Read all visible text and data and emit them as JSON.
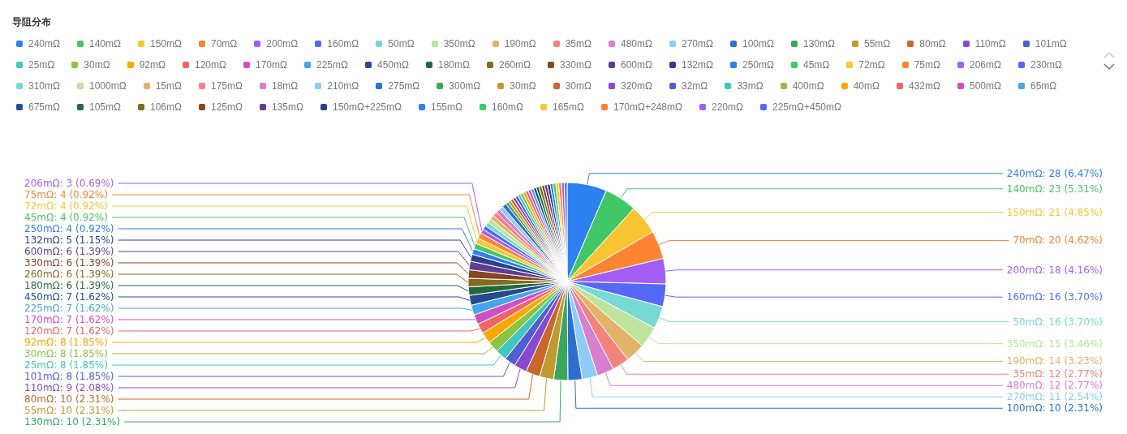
{
  "chart_data": {
    "type": "pie",
    "title": "导阻分布",
    "legend": "top",
    "categories": [
      "240mΩ",
      "140mΩ",
      "150mΩ",
      "70mΩ",
      "200mΩ",
      "160mΩ",
      "50mΩ",
      "350mΩ",
      "190mΩ",
      "35mΩ",
      "480mΩ",
      "270mΩ",
      "100mΩ",
      "130mΩ",
      "55mΩ",
      "80mΩ",
      "110mΩ",
      "101mΩ",
      "25mΩ",
      "30mΩ",
      "92mΩ",
      "120mΩ",
      "170mΩ",
      "225mΩ",
      "450mΩ",
      "180mΩ",
      "260mΩ",
      "330mΩ",
      "600mΩ",
      "132mΩ",
      "250mΩ",
      "45mΩ",
      "72mΩ",
      "75mΩ",
      "206mΩ",
      "230mΩ",
      "310mΩ",
      "1000mΩ",
      "15mΩ",
      "175mΩ",
      "18mΩ",
      "210mΩ",
      "275mΩ",
      "300mΩ",
      "30mΩ",
      "30mΩ",
      "320mΩ",
      "32mΩ",
      "33mΩ",
      "400mΩ",
      "40mΩ",
      "432mΩ",
      "500mΩ",
      "65mΩ",
      "675mΩ",
      "105mΩ",
      "106mΩ",
      "125mΩ",
      "135mΩ",
      "150mΩ+225mΩ",
      "155mΩ",
      "160mΩ",
      "165mΩ",
      "170mΩ+248mΩ",
      "220mΩ",
      "225mΩ+450mΩ"
    ],
    "values": [
      28,
      23,
      21,
      20,
      18,
      16,
      16,
      15,
      14,
      12,
      12,
      11,
      10,
      10,
      10,
      10,
      9,
      8,
      8,
      8,
      8,
      7,
      7,
      7,
      7,
      6,
      6,
      6,
      6,
      5,
      4,
      4,
      4,
      4,
      3,
      3,
      3,
      3,
      3,
      3,
      3,
      3,
      3,
      2,
      2,
      2,
      2,
      2,
      2,
      2,
      2,
      2,
      2,
      2,
      2,
      2,
      2,
      2,
      2,
      2,
      2,
      2,
      2,
      2,
      2,
      2
    ],
    "colors": [
      "#2e7ff0",
      "#41c866",
      "#fbc531",
      "#fb8332",
      "#a45ef5",
      "#5568f7",
      "#76d9d2",
      "#bde39c",
      "#e3b468",
      "#f3837d",
      "#d77fd0",
      "#8ecbf7",
      "#2d6fd1",
      "#3aa85c",
      "#c19b30",
      "#c9672c",
      "#8649cf",
      "#4f5fd3",
      "#3fc9bb",
      "#8cc43f",
      "#ffa600",
      "#f26565",
      "#d04fc8",
      "#44a5ec",
      "#244b8f",
      "#23693e",
      "#826b20",
      "#86461f",
      "#5f3d92",
      "#2d3f8d",
      "#2e7ff0",
      "#41c866",
      "#fbc531",
      "#fb8332",
      "#a45ef5",
      "#5568f7",
      "#76d9d2",
      "#bde39c",
      "#e3b468",
      "#f3837d",
      "#d77fd0",
      "#8ecbf7",
      "#2d6fd1",
      "#3aa85c",
      "#c19b30",
      "#c9672c",
      "#8649cf",
      "#4f5fd3",
      "#3fc9bb",
      "#8cc43f",
      "#ffa600",
      "#f26565",
      "#d04fc8",
      "#44a5ec",
      "#244b8f",
      "#23693e",
      "#826b20",
      "#86461f",
      "#5f3d92",
      "#2d3f8d",
      "#2e7ff0",
      "#41c866",
      "#fbc531",
      "#fb8332",
      "#a45ef5",
      "#5568f7"
    ],
    "value_labels": [
      "240mΩ: 28 (6.47%)",
      "140mΩ: 23 (5.31%)",
      "150mΩ: 21 (4.85%)",
      "70mΩ: 20 (4.62%)",
      "200mΩ: 18 (4.16%)",
      "160mΩ: 16 (3.70%)",
      "50mΩ: 16 (3.70%)",
      "350mΩ: 15 (3.46%)",
      "190mΩ: 14 (3.23%)",
      "35mΩ: 12 (2.77%)",
      "480mΩ: 12 (2.77%)",
      "270mΩ: 11 (2.54%)",
      "100mΩ: 10 (2.31%)",
      "130mΩ: 10 (2.31%)",
      "55mΩ: 10 (2.31%)",
      "80mΩ: 10 (2.31%)",
      "110mΩ: 9 (2.08%)",
      "101mΩ: 8 (1.85%)",
      "25mΩ: 8 (1.85%)",
      "30mΩ: 8 (1.85%)",
      "92mΩ: 8 (1.85%)",
      "120mΩ: 7 (1.62%)",
      "170mΩ: 7 (1.62%)",
      "225mΩ: 7 (1.62%)",
      "450mΩ: 7 (1.62%)",
      "180mΩ: 6 (1.39%)",
      "260mΩ: 6 (1.39%)",
      "330mΩ: 6 (1.39%)",
      "600mΩ: 6 (1.39%)",
      "132mΩ: 5 (1.15%)",
      "250mΩ: 4 (0.92%)",
      "45mΩ: 4 (0.92%)",
      "72mΩ: 4 (0.92%)",
      "75mΩ: 4 (0.92%)",
      "206mΩ: 3 (0.69%)",
      null,
      null,
      null,
      null,
      null,
      null,
      null,
      null,
      null,
      null,
      null,
      null,
      null,
      null,
      null,
      null,
      null,
      null,
      null,
      null,
      null,
      null,
      null,
      null,
      null,
      null,
      null,
      null,
      null,
      null,
      null
    ]
  }
}
